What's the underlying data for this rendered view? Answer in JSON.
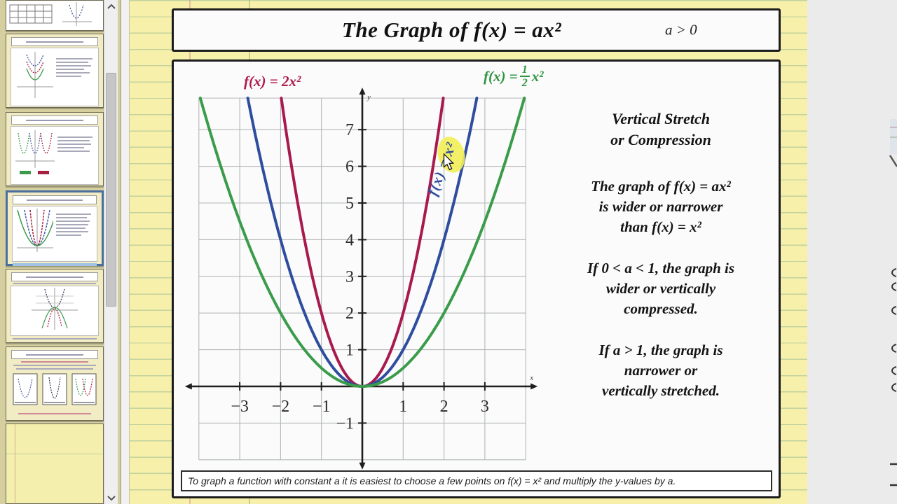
{
  "title_bar": {
    "title": "The Graph of f(x) = ax²",
    "condition": "a > 0"
  },
  "graph": {
    "labels": {
      "red": "f(x) = 2x²",
      "blue": "f(x) = x²",
      "green": {
        "prefix": "f(x) =",
        "numerator": "1",
        "denominator": "2",
        "suffix": "x²"
      }
    }
  },
  "chart_data": {
    "type": "line",
    "title": "The Graph of f(x) = ax², a > 0",
    "x_range": [
      -4,
      4
    ],
    "y_range": [
      -2,
      7.86
    ],
    "x_ticks": [
      -3,
      -2,
      -1,
      1,
      2,
      3
    ],
    "y_ticks": [
      -1,
      1,
      2,
      3,
      4,
      5,
      6,
      7
    ],
    "axis_labels": {
      "x": "x",
      "y": "y"
    },
    "grid": true,
    "series": [
      {
        "name": "f(x) = 2x²",
        "equation": "y = 2x^2",
        "coefficient": 2,
        "color": "#a81a4e"
      },
      {
        "name": "f(x) = x²",
        "equation": "y = x^2",
        "coefficient": 1,
        "color": "#2e4d9e"
      },
      {
        "name": "f(x) = (1/2)x²",
        "equation": "y = 0.5x^2",
        "coefficient": 0.5,
        "color": "#3a9c4a"
      }
    ]
  },
  "info_panel": {
    "blocks": [
      {
        "lines": [
          "Vertical Stretch",
          "or Compression"
        ]
      },
      {
        "lines": [
          "The graph of f(x) = ax²",
          "is wider or narrower",
          "than f(x) = x²"
        ]
      },
      {
        "lines": [
          "If 0 < a < 1, the graph is",
          "wider or vertically",
          "compressed."
        ]
      },
      {
        "lines": [
          "If a > 1, the graph is",
          "narrower or",
          "vertically stretched."
        ]
      }
    ]
  },
  "note": {
    "text": "To graph a function with constant a it is easiest to choose a few points on  f(x) = x²  and multiply the y-values by a."
  },
  "sidebar": {
    "thumbnails": [
      {
        "id": 1,
        "selected": false,
        "content": "table-and-parabola"
      },
      {
        "id": 2,
        "selected": false,
        "content": "vertical-shift-graphs"
      },
      {
        "id": 3,
        "selected": false,
        "content": "horizontal-shift-graphs"
      },
      {
        "id": 4,
        "selected": true,
        "content": "vertical-stretch-compression-graphs"
      },
      {
        "id": 5,
        "selected": false,
        "content": "reflection-graphs"
      },
      {
        "id": 6,
        "selected": false,
        "content": "combined-transformation-graphs"
      },
      {
        "id": 7,
        "selected": false,
        "content": "blank-page"
      }
    ],
    "scrollbar": {
      "up_icon": "chevron-up-icon",
      "down_icon": "chevron-down-icon"
    }
  }
}
